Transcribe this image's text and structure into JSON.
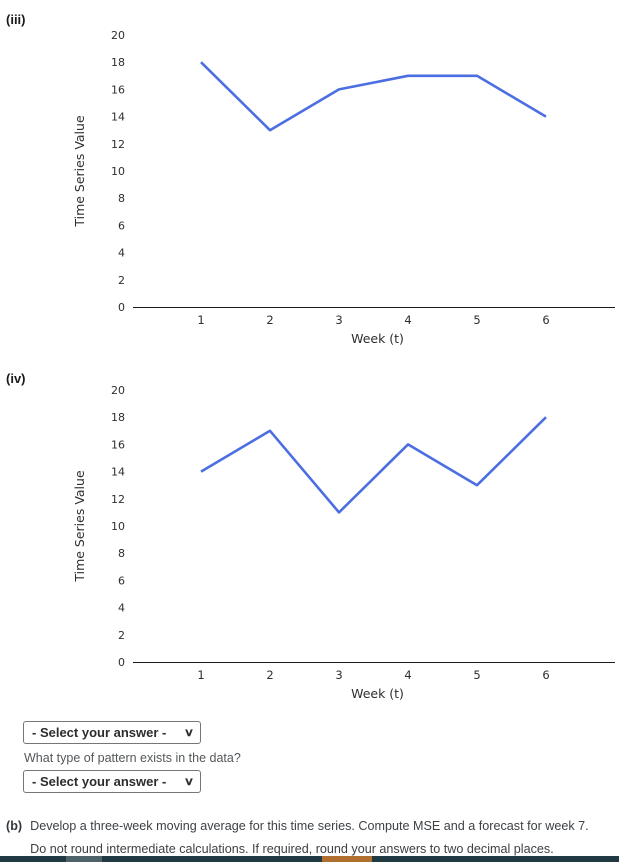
{
  "page": {
    "label_iii": "(iii)",
    "label_iv": "(iv)",
    "question": "What type of pattern exists in the data?",
    "select_placeholder": "- Select your answer -",
    "select_chevron": "∨",
    "part_b_label": "(b)",
    "part_b_line1": "Develop a three-week moving average for this time series. Compute MSE and a forecast for week 7.",
    "part_b_line2": "Do not round intermediate calculations. If required, round your answers to two decimal places."
  },
  "colors": {
    "line": "#4c6ee3",
    "axis": "#1a1a1a",
    "tick_text": "#2e2e2e",
    "bar_base": "#203a44",
    "bar_gray": "#4f6169",
    "bar_orange": "#b06f2e"
  },
  "chart_data": [
    {
      "id": "iii",
      "type": "line",
      "x": [
        1,
        2,
        3,
        4,
        5,
        6
      ],
      "values": [
        18,
        13,
        16,
        17,
        17,
        14
      ],
      "title": "",
      "xlabel": "Week (t)",
      "ylabel": "Time Series Value",
      "ylim": [
        0,
        20
      ],
      "ytick_step": 2,
      "xticks": [
        "1",
        "2",
        "3",
        "4",
        "5",
        "6"
      ],
      "grid": false,
      "legend": "none"
    },
    {
      "id": "iv",
      "type": "line",
      "x": [
        1,
        2,
        3,
        4,
        5,
        6
      ],
      "values": [
        14,
        17,
        11,
        16,
        13,
        18
      ],
      "title": "",
      "xlabel": "Week (t)",
      "ylabel": "Time Series Value",
      "ylim": [
        0,
        20
      ],
      "ytick_step": 2,
      "xticks": [
        "1",
        "2",
        "3",
        "4",
        "5",
        "6"
      ],
      "grid": false,
      "legend": "none"
    }
  ]
}
